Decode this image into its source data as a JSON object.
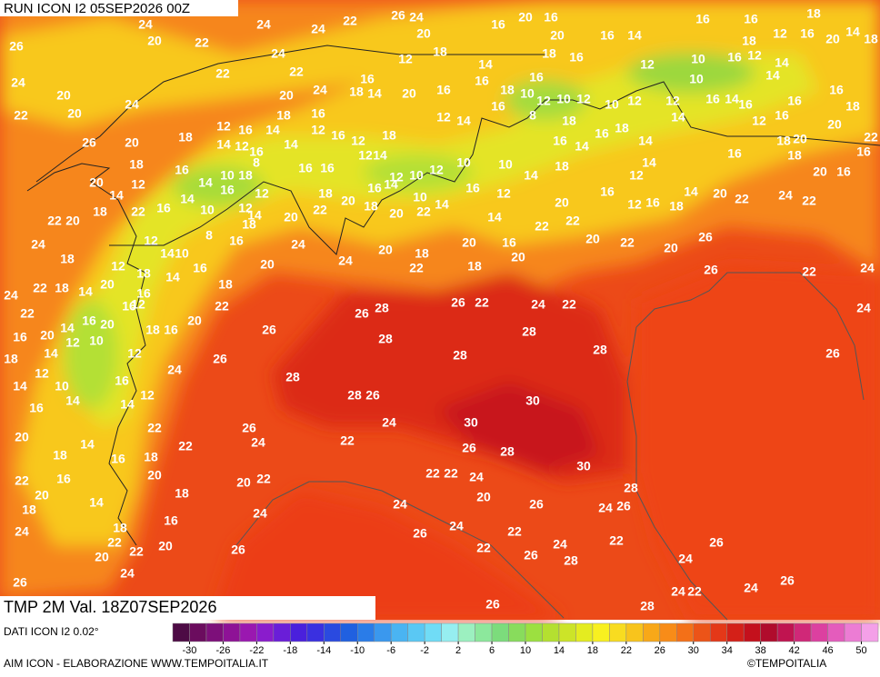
{
  "header": {
    "run": "RUN ICON I2 05SEP2026 00Z"
  },
  "map": {
    "field": "TMP 2M Val. 18Z07SEP2026",
    "labels": [
      26,
      24,
      20,
      22,
      24,
      24,
      22,
      26,
      20,
      24,
      16,
      20,
      16,
      20,
      16,
      14,
      16,
      16,
      18,
      12,
      16,
      18,
      20,
      14,
      18,
      24,
      20,
      22,
      20,
      24,
      22,
      24,
      22,
      20,
      24,
      16,
      18,
      14,
      12,
      20,
      18,
      16,
      14,
      16,
      18,
      16,
      10,
      18,
      12,
      10,
      12,
      16,
      10,
      12,
      12,
      12,
      10,
      10,
      16,
      12,
      14,
      14,
      16,
      14,
      16,
      12,
      16,
      16,
      16,
      18,
      20,
      26,
      20,
      18,
      18,
      12,
      16,
      12,
      14,
      14,
      18,
      14,
      16,
      12,
      16,
      12,
      18,
      12,
      14,
      16,
      8,
      18,
      18,
      16,
      14,
      16,
      14,
      14,
      16,
      18,
      20,
      22,
      16,
      18,
      20,
      16,
      20,
      18,
      22,
      22,
      20,
      24,
      14,
      12,
      16,
      16,
      14,
      14,
      10,
      10,
      18,
      16,
      16,
      12,
      14,
      8,
      12,
      16,
      16,
      18,
      20,
      16,
      14,
      18,
      12,
      14,
      12,
      10,
      12,
      10,
      22,
      20,
      14,
      10,
      16,
      10,
      12,
      14,
      18,
      20,
      22,
      16,
      12,
      14,
      12,
      16,
      18,
      14,
      20,
      22,
      24,
      22,
      20,
      22,
      24,
      22,
      18,
      18,
      14,
      20,
      12,
      18,
      12,
      14,
      10,
      16,
      16,
      18,
      18,
      20,
      8,
      14,
      16,
      12,
      24,
      24,
      20,
      18,
      22,
      20,
      18,
      14,
      16,
      20,
      22,
      20,
      22,
      20,
      26,
      26,
      22,
      24,
      22,
      16,
      20,
      14,
      16,
      12,
      10,
      14,
      12,
      18,
      14,
      10,
      14,
      16,
      20,
      16,
      18,
      16,
      20,
      22,
      12,
      24,
      26,
      26,
      16,
      14,
      12,
      26,
      28,
      28,
      26,
      22,
      24,
      22,
      28,
      28,
      28,
      28,
      28,
      26,
      30,
      30,
      26,
      24,
      20,
      18,
      14,
      22,
      22,
      18,
      16,
      20,
      26,
      24,
      22,
      24,
      26,
      28,
      30,
      22,
      16,
      20,
      18,
      20,
      22,
      18,
      14,
      16,
      18,
      22,
      20,
      22,
      20,
      24,
      22,
      22,
      24,
      20,
      24,
      24,
      28,
      24,
      26,
      26,
      26,
      24,
      22,
      22,
      26,
      24,
      28,
      22,
      26,
      24,
      26,
      26,
      24,
      24,
      26,
      24,
      22,
      26,
      28
    ]
  },
  "legend": {
    "source": "DATI ICON I2 0.02°",
    "range": [
      -32,
      52
    ],
    "colors": [
      "#4d0b45",
      "#6b0c5e",
      "#7d0f7a",
      "#8e1296",
      "#9a18b0",
      "#8a1ccc",
      "#6a1ed8",
      "#4a20dc",
      "#3a30e0",
      "#2a4ae0",
      "#2060e0",
      "#2a7ce8",
      "#3a98ee",
      "#4ab4f2",
      "#5ac8f4",
      "#70dcf6",
      "#96eef0",
      "#9cf0c0",
      "#8ce89c",
      "#7cdc7c",
      "#88dc5c",
      "#9ce040",
      "#b4e030",
      "#cce428",
      "#e4ec20",
      "#f8f020",
      "#f8dc20",
      "#f8c41c",
      "#f8a818",
      "#f88c18",
      "#f47018",
      "#ec5418",
      "#e43818",
      "#d42018",
      "#c4101c",
      "#b00c2c",
      "#c01450",
      "#d02878",
      "#dc40a0",
      "#e45cbc",
      "#ec7cd4",
      "#f4a0e8"
    ],
    "ticks": [
      -30,
      -26,
      -22,
      -18,
      -14,
      -10,
      -6,
      -2,
      2,
      6,
      10,
      14,
      18,
      22,
      26,
      30,
      34,
      38,
      42,
      46,
      50
    ]
  },
  "footer": {
    "credit": "AIM ICON - ELABORAZIONE WWW.TEMPOITALIA.IT",
    "copyright": "©TEMPOITALIA"
  }
}
